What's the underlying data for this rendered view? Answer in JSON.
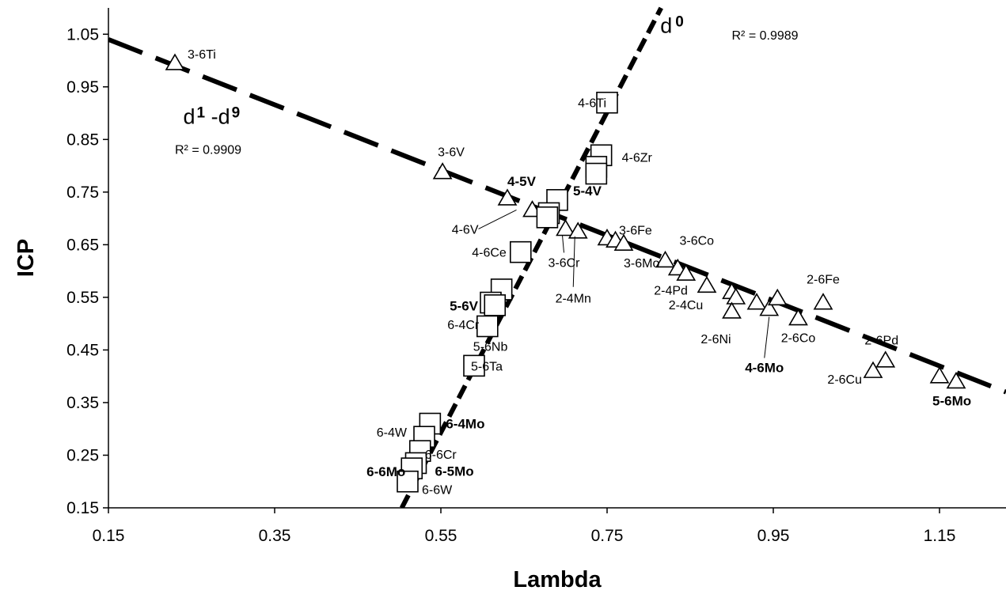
{
  "chart_data": {
    "type": "scatter",
    "xlabel": "Lambda",
    "ylabel": "ICP",
    "xlim": [
      0.15,
      1.23
    ],
    "ylim": [
      0.15,
      1.1
    ],
    "xticks": [
      "0.15",
      "0.35",
      "0.55",
      "0.75",
      "0.95",
      "1.15"
    ],
    "yticks": [
      "0.15",
      "0.25",
      "0.35",
      "0.45",
      "0.55",
      "0.65",
      "0.75",
      "0.85",
      "0.95",
      "1.05"
    ],
    "grid": false,
    "fits": [
      {
        "name": "d0",
        "label_base": "d",
        "label_sup": "0",
        "r2": "R² = 0.9989",
        "points": [
          [
            0.503,
            0.15
          ],
          [
            0.815,
            1.1
          ]
        ]
      },
      {
        "name": "d1-d9",
        "label_base": "d",
        "label_sup1": "1",
        "label_mid": " -d",
        "label_sup2": "9",
        "r2": "R² = 0.9909",
        "points": [
          [
            0.15,
            1.04
          ],
          [
            1.23,
            0.37
          ]
        ]
      }
    ],
    "series": [
      {
        "name": "d1-d9",
        "marker": "triangle",
        "points": [
          {
            "label": "3-6Ti",
            "x": 0.23,
            "y": 0.995
          },
          {
            "label": "3-6V",
            "x": 0.552,
            "y": 0.788
          },
          {
            "label": "4-5V",
            "x": 0.63,
            "y": 0.738,
            "bold": true
          },
          {
            "label": "4-6V",
            "x": 0.66,
            "y": 0.716
          },
          {
            "label": "",
            "x": 0.68,
            "y": 0.705
          },
          {
            "label": "3-6Cr",
            "x": 0.7,
            "y": 0.68
          },
          {
            "label": "2-4Mn",
            "x": 0.715,
            "y": 0.675
          },
          {
            "label": "3-6Fe",
            "x": 0.75,
            "y": 0.662
          },
          {
            "label": "",
            "x": 0.76,
            "y": 0.658
          },
          {
            "label": "3-6Mo",
            "x": 0.77,
            "y": 0.652
          },
          {
            "label": "3-6Co",
            "x": 0.82,
            "y": 0.62
          },
          {
            "label": "2-4Pd",
            "x": 0.835,
            "y": 0.605
          },
          {
            "label": "2-4Cu",
            "x": 0.845,
            "y": 0.595
          },
          {
            "label": "",
            "x": 0.87,
            "y": 0.572
          },
          {
            "label": "",
            "x": 0.9,
            "y": 0.56
          },
          {
            "label": "",
            "x": 0.905,
            "y": 0.55
          },
          {
            "label": "2-6Ni",
            "x": 0.9,
            "y": 0.523
          },
          {
            "label": "",
            "x": 0.93,
            "y": 0.54
          },
          {
            "label": "4-6Mo",
            "x": 0.945,
            "y": 0.528,
            "bold": true
          },
          {
            "label": "",
            "x": 0.955,
            "y": 0.548
          },
          {
            "label": "2-6Co",
            "x": 0.98,
            "y": 0.51
          },
          {
            "label": "2-6Fe",
            "x": 1.01,
            "y": 0.54
          },
          {
            "label": "2-6Pd",
            "x": 1.085,
            "y": 0.43
          },
          {
            "label": "2-6Cu",
            "x": 1.07,
            "y": 0.41
          },
          {
            "label": "",
            "x": 1.15,
            "y": 0.4
          },
          {
            "label": "5-6Mo",
            "x": 1.17,
            "y": 0.39,
            "bold": true
          }
        ]
      },
      {
        "name": "d0",
        "marker": "square",
        "points": [
          {
            "label": "4-6Ti",
            "x": 0.75,
            "y": 0.92
          },
          {
            "label": "4-6Zr",
            "x": 0.743,
            "y": 0.82
          },
          {
            "label": "",
            "x": 0.737,
            "y": 0.798
          },
          {
            "label": "",
            "x": 0.737,
            "y": 0.785
          },
          {
            "label": "5-4V",
            "x": 0.69,
            "y": 0.735,
            "bold": true
          },
          {
            "label": "",
            "x": 0.68,
            "y": 0.71
          },
          {
            "label": "",
            "x": 0.678,
            "y": 0.702
          },
          {
            "label": "4-6Ce",
            "x": 0.646,
            "y": 0.636
          },
          {
            "label": "",
            "x": 0.623,
            "y": 0.565
          },
          {
            "label": "5-6V",
            "x": 0.61,
            "y": 0.54,
            "bold": true
          },
          {
            "label": "6-4Cr",
            "x": 0.615,
            "y": 0.535
          },
          {
            "label": "5-6Nb",
            "x": 0.606,
            "y": 0.495
          },
          {
            "label": "5-6Ta",
            "x": 0.59,
            "y": 0.42
          },
          {
            "label": "6-4Mo",
            "x": 0.537,
            "y": 0.31,
            "bold": true
          },
          {
            "label": "6-4W",
            "x": 0.53,
            "y": 0.285
          },
          {
            "label": "6-6Cr",
            "x": 0.525,
            "y": 0.258
          },
          {
            "label": "6-5Mo",
            "x": 0.52,
            "y": 0.235,
            "bold": true
          },
          {
            "label": "6-6Mo",
            "x": 0.515,
            "y": 0.225,
            "bold": true
          },
          {
            "label": "6-6W",
            "x": 0.51,
            "y": 0.2
          }
        ]
      }
    ]
  }
}
